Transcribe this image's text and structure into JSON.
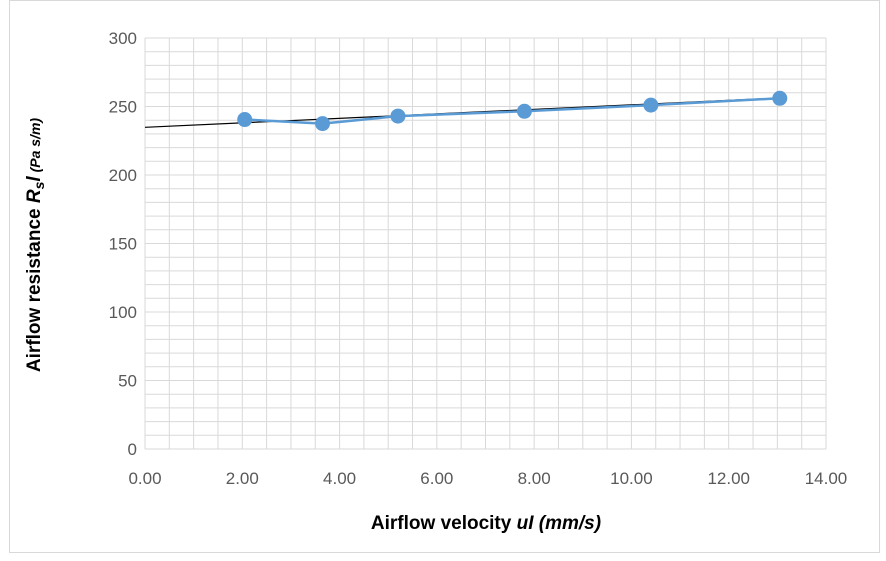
{
  "chart_data": {
    "type": "scatter",
    "title": "",
    "xlabel": {
      "main": "Airflow velocity ",
      "var": "uI",
      "unit": " (mm/s)"
    },
    "ylabel": {
      "main": "Airflow resistance ",
      "var": "R",
      "sub": "s",
      "var2": "l",
      "unit": " (Pa s/m)"
    },
    "xlim": [
      0,
      14
    ],
    "ylim": [
      0,
      300
    ],
    "x_ticks": [
      "0.00",
      "2.00",
      "4.00",
      "6.00",
      "8.00",
      "10.00",
      "12.00",
      "14.00"
    ],
    "y_ticks": [
      "0",
      "50",
      "100",
      "150",
      "200",
      "250",
      "300"
    ],
    "x_tick_values": [
      0,
      2,
      4,
      6,
      8,
      10,
      12,
      14
    ],
    "y_tick_values": [
      0,
      50,
      100,
      150,
      200,
      250,
      300
    ],
    "grid": true,
    "minor_grid": {
      "x_step": 0.5,
      "y_step": 10
    },
    "series": [
      {
        "x": [
          2.05,
          3.65,
          5.2,
          7.8,
          10.4,
          13.05
        ],
        "y": [
          240.5,
          237.5,
          243,
          246.5,
          251,
          256
        ],
        "marker": "circle",
        "connected": true,
        "color": "#5b9bd5"
      }
    ],
    "trendline": {
      "type": "linear",
      "x_range": [
        0,
        13.05
      ],
      "y_at_start": 234.8,
      "y_at_end": 256.2,
      "color": "#000000"
    }
  }
}
